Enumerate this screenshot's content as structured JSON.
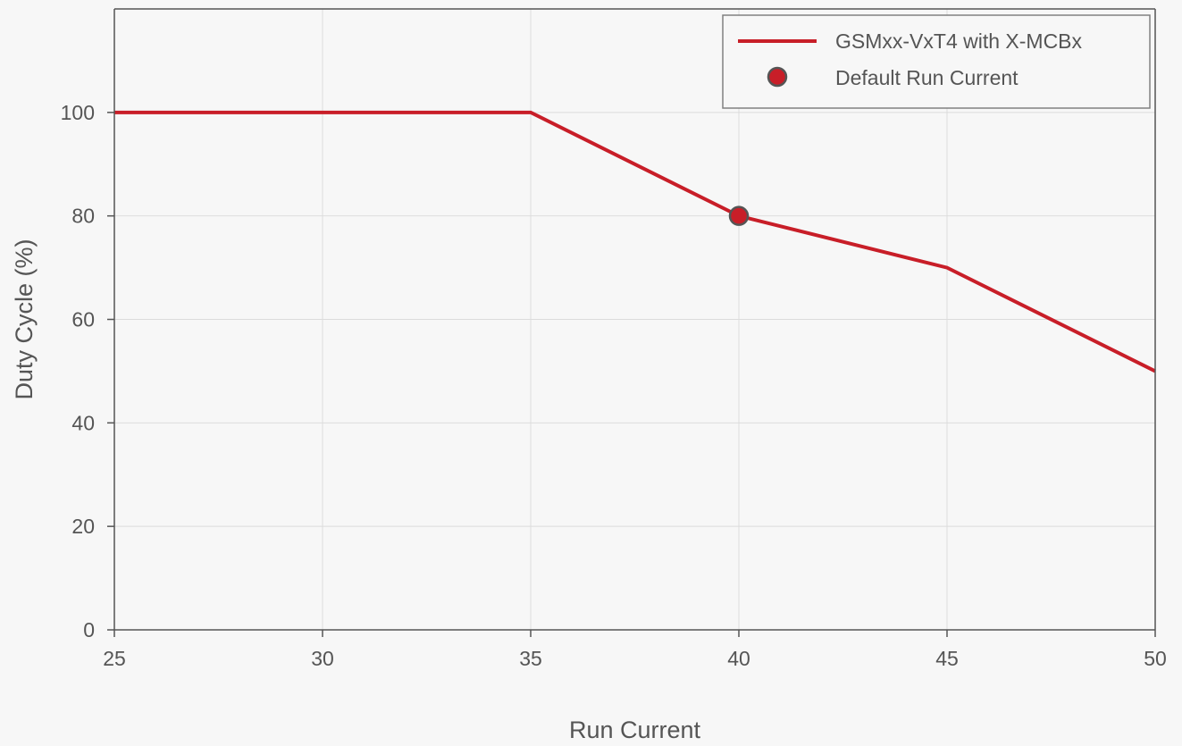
{
  "chart_data": {
    "type": "line",
    "xlabel": "Run Current",
    "ylabel": "Duty Cycle (%)",
    "xlim": [
      25,
      50
    ],
    "ylim": [
      0,
      120
    ],
    "x_ticks": [
      "25",
      "30",
      "35",
      "40",
      "45",
      "50"
    ],
    "y_ticks": [
      "0",
      "20",
      "40",
      "60",
      "80",
      "100"
    ],
    "grid": true,
    "legend_position": "top-right",
    "series": [
      {
        "name": "GSMxx-VxT4 with X-MCBx",
        "color": "#c81e28",
        "x": [
          25,
          35,
          40,
          45,
          50
        ],
        "y": [
          100,
          100,
          80,
          70,
          50
        ]
      }
    ],
    "markers": [
      {
        "name": "Default Run Current",
        "x": 40,
        "y": 80,
        "color": "#c81e28",
        "edge_color": "#555555"
      }
    ]
  }
}
